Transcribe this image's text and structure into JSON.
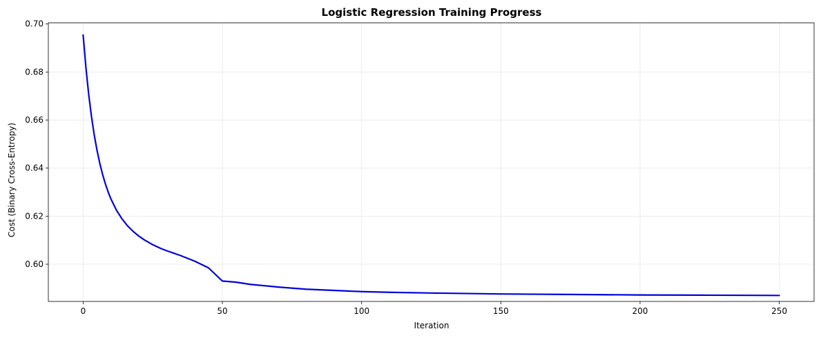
{
  "chart_data": {
    "type": "line",
    "title": "Logistic Regression Training Progress",
    "xlabel": "Iteration",
    "ylabel": "Cost (Binary Cross-Entropy)",
    "xlim": [
      -12.5,
      262.5
    ],
    "ylim": [
      0.5845,
      0.7005
    ],
    "xticks": [
      0,
      50,
      100,
      150,
      200,
      250
    ],
    "yticks": [
      0.6,
      0.62,
      0.64,
      0.66,
      0.68,
      0.7
    ],
    "grid": true,
    "series": [
      {
        "color": "#0000dd",
        "x": [
          0,
          1,
          2,
          3,
          4,
          5,
          6,
          7,
          8,
          9,
          10,
          12,
          14,
          16,
          18,
          20,
          22,
          25,
          28,
          30,
          35,
          40,
          45,
          50,
          55,
          60,
          70,
          80,
          90,
          100,
          110,
          125,
          150,
          175,
          200,
          225,
          250
        ],
        "y": [
          0.6954,
          0.6818,
          0.6706,
          0.6614,
          0.6537,
          0.6473,
          0.6419,
          0.6373,
          0.6334,
          0.63,
          0.6271,
          0.6224,
          0.6188,
          0.6159,
          0.6136,
          0.6117,
          0.6101,
          0.6081,
          0.6065,
          0.6056,
          0.6036,
          0.6013,
          0.5985,
          0.593,
          0.5925,
          0.5916,
          0.5905,
          0.5896,
          0.5891,
          0.5886,
          0.5883,
          0.588,
          0.5876,
          0.5874,
          0.5872,
          0.5871,
          0.587
        ]
      }
    ]
  }
}
